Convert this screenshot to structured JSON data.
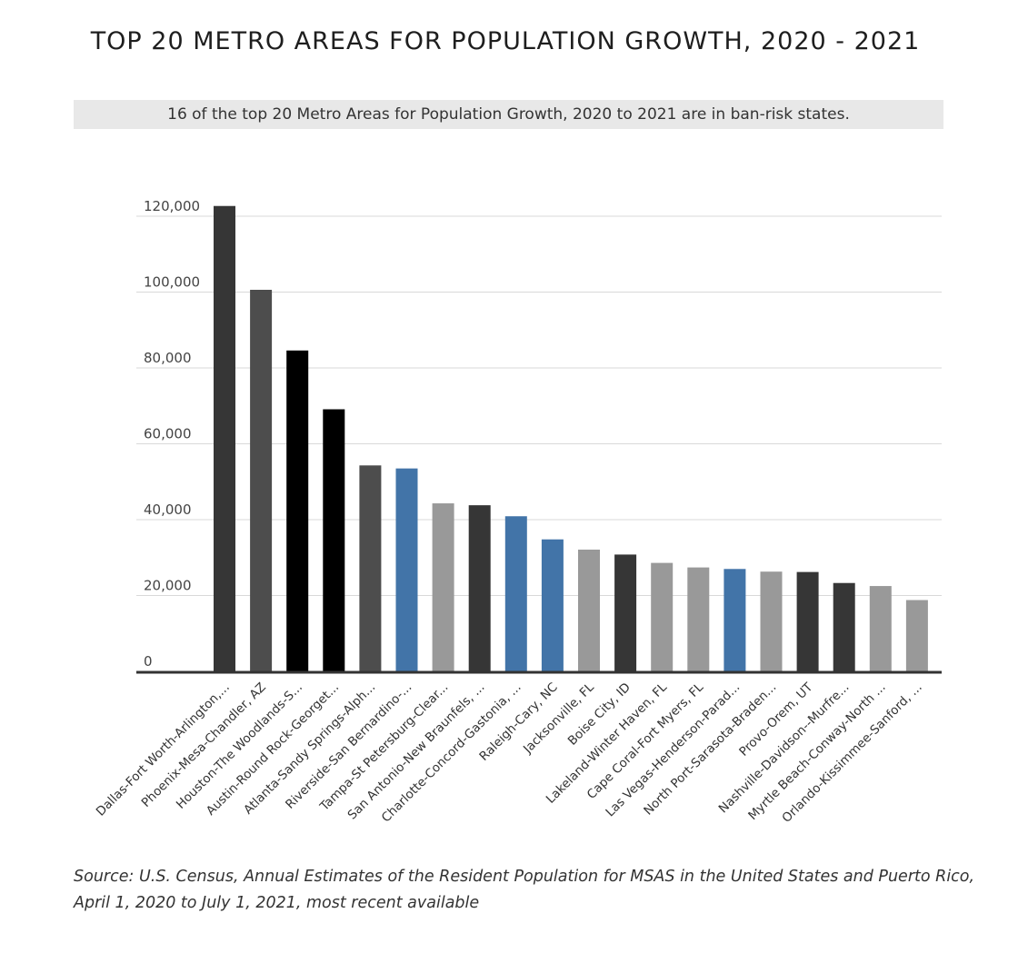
{
  "header": {
    "title": "TOP 20 METRO AREAS FOR POPULATION GROWTH, 2020 - 2021",
    "subtitle": "16 of the top 20 Metro Areas for Population Growth, 2020 to 2021 are in ban-risk states."
  },
  "footer": {
    "source_line1": "Source: U.S. Census, Annual Estimates of the Resident Population for MSAS in the United States and Puerto Rico,",
    "source_line2": "April 1, 2020 to July 1, 2021, most recent available"
  },
  "colors": {
    "dark_gray": "#363636",
    "medium_gray": "#4d4d4d",
    "black": "#000000",
    "blue": "#4274a8",
    "light_gray": "#999999",
    "gridline": "#d9d9d9",
    "axis": "#333333"
  },
  "chart_data": {
    "type": "bar",
    "title": "",
    "xlabel": "",
    "ylabel": "",
    "ylim": [
      0,
      120000
    ],
    "yticks": [
      0,
      20000,
      40000,
      60000,
      80000,
      100000,
      120000
    ],
    "ytick_labels": [
      "0",
      "20,000",
      "40,000",
      "60,000",
      "80,000",
      "100,000",
      "120,000"
    ],
    "grid": true,
    "legend": "none",
    "categories": [
      "Dallas-Fort Worth-Arlington,...",
      "Phoenix-Mesa-Chandler, AZ",
      "Houston-The Woodlands-S...",
      "Austin-Round Rock-Georget...",
      "Atlanta-Sandy Springs-Alph...",
      "Riverside-San Bernardino-...",
      "Tampa-St Petersburg-Clear...",
      "San Antonio-New Braunfels, ...",
      "Charlotte-Concord-Gastonia, ...",
      "Raleigh-Cary, NC",
      "Jacksonville, FL",
      "Boise City, ID",
      "Lakeland-Winter Haven, FL",
      "Cape Coral-Fort Myers, FL",
      "Las Vegas-Henderson-Parad...",
      "North Port-Sarasota-Braden...",
      "Provo-Orem, UT",
      "Nashville-Davidson--Murfre...",
      "Myrtle Beach-Conway-North ...",
      "Orlando-Kissimmee-Sanford, ..."
    ],
    "values": [
      122700,
      100600,
      84600,
      69100,
      54300,
      53500,
      44300,
      43800,
      40900,
      34800,
      32100,
      30800,
      28600,
      27400,
      27000,
      26300,
      26200,
      23300,
      22500,
      18800
    ],
    "bar_colors": [
      "#363636",
      "#4d4d4d",
      "#000000",
      "#000000",
      "#4d4d4d",
      "#4274a8",
      "#999999",
      "#363636",
      "#4274a8",
      "#4274a8",
      "#999999",
      "#363636",
      "#999999",
      "#999999",
      "#4274a8",
      "#999999",
      "#363636",
      "#363636",
      "#999999",
      "#999999"
    ]
  }
}
